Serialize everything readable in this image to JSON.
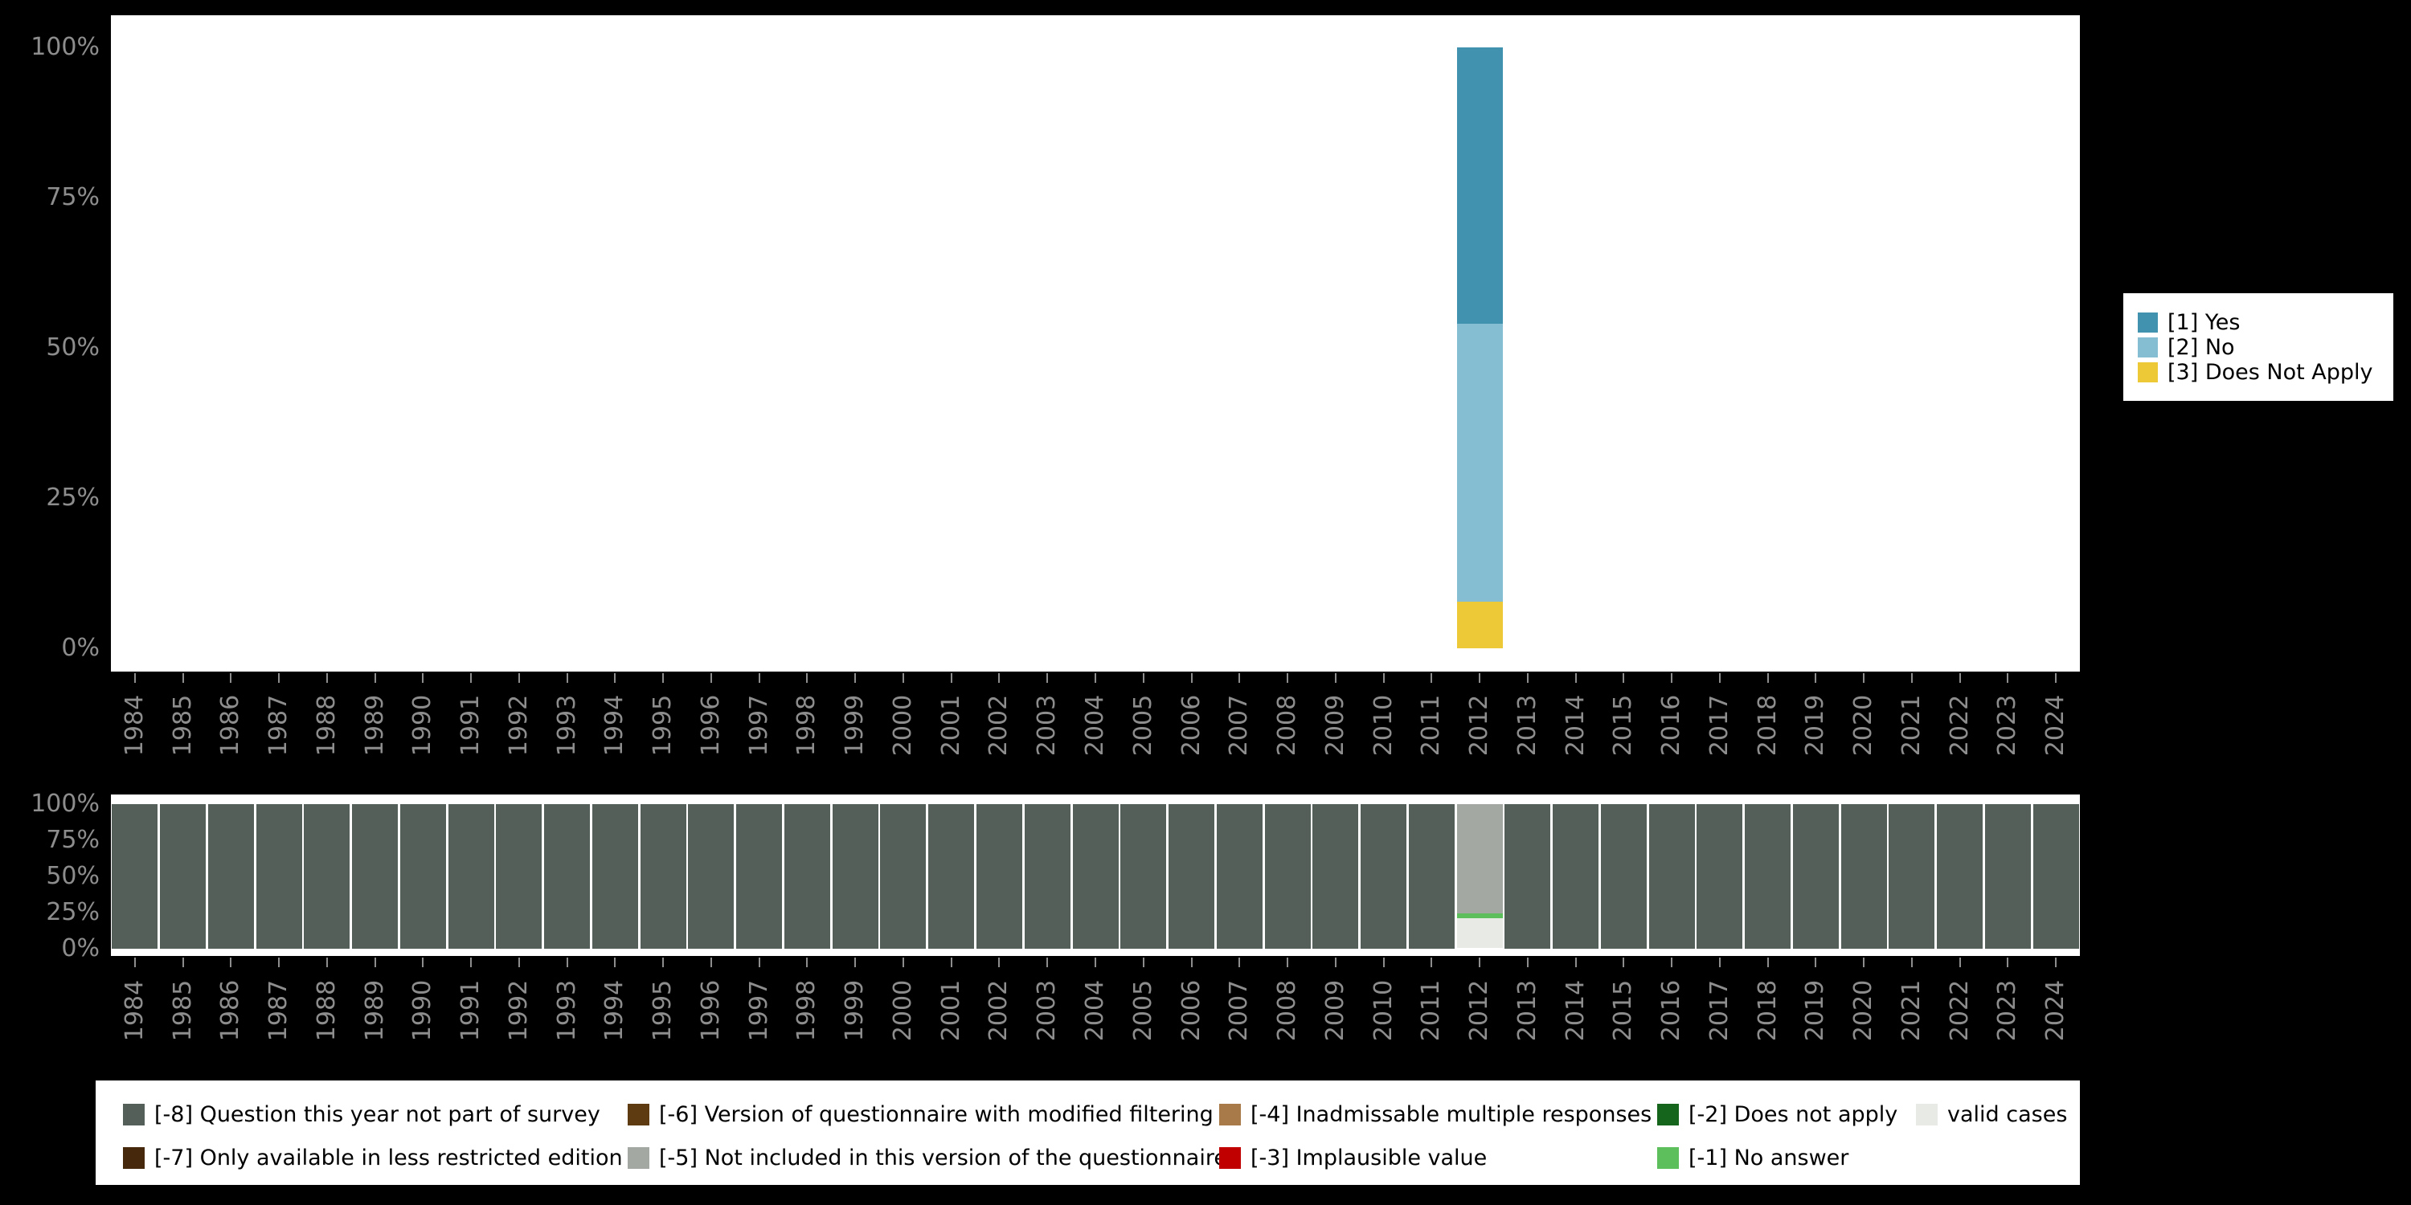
{
  "page": {
    "background": "#000000",
    "panel_background": "#ffffff",
    "axis_text_color": "#8d8d8d"
  },
  "years": [
    "1984",
    "1985",
    "1986",
    "1987",
    "1988",
    "1989",
    "1990",
    "1991",
    "1992",
    "1993",
    "1994",
    "1995",
    "1996",
    "1997",
    "1998",
    "1999",
    "2000",
    "2001",
    "2002",
    "2003",
    "2004",
    "2005",
    "2006",
    "2007",
    "2008",
    "2009",
    "2010",
    "2011",
    "2012",
    "2013",
    "2014",
    "2015",
    "2016",
    "2017",
    "2018",
    "2019",
    "2020",
    "2021",
    "2022",
    "2023",
    "2024"
  ],
  "axes": {
    "y_tick_labels": [
      "100%",
      "75%",
      "50%",
      "25%",
      "0%"
    ]
  },
  "chart_data": [
    {
      "type": "bar",
      "stacked": true,
      "percent_axis": true,
      "panel": "top",
      "categories": [
        "1984",
        "1985",
        "1986",
        "1987",
        "1988",
        "1989",
        "1990",
        "1991",
        "1992",
        "1993",
        "1994",
        "1995",
        "1996",
        "1997",
        "1998",
        "1999",
        "2000",
        "2001",
        "2002",
        "2003",
        "2004",
        "2005",
        "2006",
        "2007",
        "2008",
        "2009",
        "2010",
        "2011",
        "2012",
        "2013",
        "2014",
        "2015",
        "2016",
        "2017",
        "2018",
        "2019",
        "2020",
        "2021",
        "2022",
        "2023",
        "2024"
      ],
      "ylim": [
        0,
        100
      ],
      "y_tick_labels": [
        "0%",
        "25%",
        "50%",
        "75%",
        "100%"
      ],
      "segment_order": "bottom_to_top",
      "bars": {
        "2012": [
          {
            "label": "[3] Does Not Apply",
            "value": 7.7,
            "color": "#eec937"
          },
          {
            "label": "[2] No",
            "value": 46.3,
            "color": "#85bed3"
          },
          {
            "label": "[1] Yes",
            "value": 46.0,
            "color": "#4192ae"
          }
        ]
      }
    },
    {
      "type": "bar",
      "stacked": true,
      "percent_axis": true,
      "panel": "bottom",
      "categories": [
        "1984",
        "1985",
        "1986",
        "1987",
        "1988",
        "1989",
        "1990",
        "1991",
        "1992",
        "1993",
        "1994",
        "1995",
        "1996",
        "1997",
        "1998",
        "1999",
        "2000",
        "2001",
        "2002",
        "2003",
        "2004",
        "2005",
        "2006",
        "2007",
        "2008",
        "2009",
        "2010",
        "2011",
        "2012",
        "2013",
        "2014",
        "2015",
        "2016",
        "2017",
        "2018",
        "2019",
        "2020",
        "2021",
        "2022",
        "2023",
        "2024"
      ],
      "ylim": [
        0,
        100
      ],
      "y_tick_labels": [
        "0%",
        "25%",
        "50%",
        "75%",
        "100%"
      ],
      "segment_order": "bottom_to_top",
      "default_segments": [
        {
          "label": "[-8] Question this year not part of survey",
          "value": 100,
          "color": "#545f5a"
        }
      ],
      "bars": {
        "2012": [
          {
            "label": "valid cases",
            "value": 21,
            "color": "#e8ebe5"
          },
          {
            "label": "[-1] No answer",
            "value": 3,
            "color": "#5cbf5c"
          },
          {
            "label": "[-5] Not included in this version of the questionnaire",
            "value": 76,
            "color": "#a3a8a2"
          }
        ]
      }
    }
  ],
  "legend_top": {
    "items": [
      {
        "label": "[1] Yes",
        "color": "#4192ae"
      },
      {
        "label": "[2] No",
        "color": "#85bed3"
      },
      {
        "label": "[3] Does Not Apply",
        "color": "#eec937"
      }
    ]
  },
  "legend_bottom": {
    "rows": [
      [
        {
          "label": "[-8] Question this year not part of survey",
          "color": "#545f5a"
        },
        {
          "label": "[-6] Version of questionnaire with modified filtering",
          "color": "#5f3b12"
        },
        {
          "label": "[-4] Inadmissable multiple responses",
          "color": "#a87a4a"
        },
        {
          "label": "[-2] Does not apply",
          "color": "#15661c"
        },
        {
          "label": "valid cases",
          "color": "#e8ebe5"
        }
      ],
      [
        {
          "label": "[-7] Only available in less restricted edition",
          "color": "#46280c"
        },
        {
          "label": "[-5] Not included in this version of the questionnaire",
          "color": "#a3a8a2"
        },
        {
          "label": "[-3] Implausible value",
          "color": "#c00000"
        },
        {
          "label": "[-1] No answer",
          "color": "#5cbf5c"
        }
      ]
    ]
  }
}
